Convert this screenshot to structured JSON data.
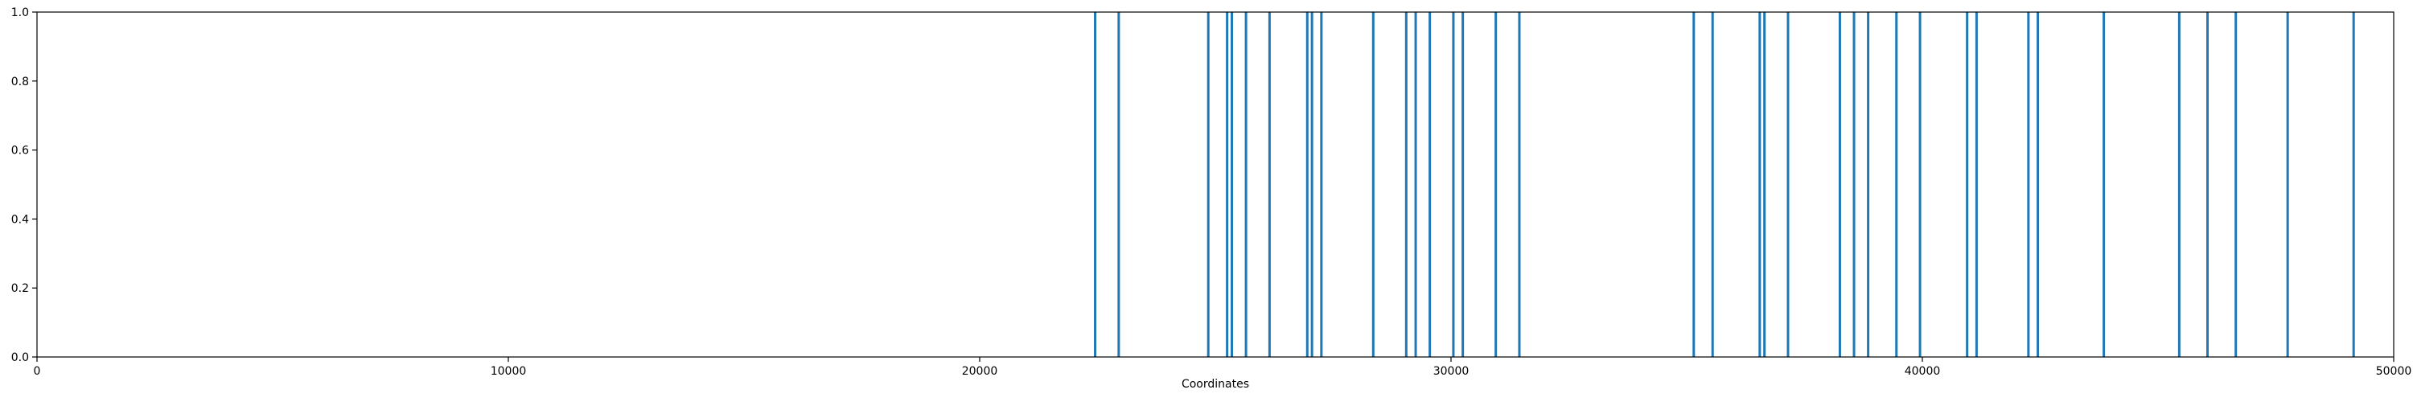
{
  "chart_data": {
    "type": "bar",
    "title": "",
    "xlabel": "Coordinates",
    "ylabel": "",
    "xlim": [
      0,
      50000
    ],
    "ylim": [
      0.0,
      1.0
    ],
    "x_ticks": [
      0,
      10000,
      20000,
      30000,
      40000,
      50000
    ],
    "x_tick_labels": [
      "0",
      "10000",
      "20000",
      "30000",
      "40000",
      "50000"
    ],
    "y_ticks": [
      0.0,
      0.2,
      0.4,
      0.6,
      0.8,
      1.0
    ],
    "y_tick_labels": [
      "0.0",
      "0.2",
      "0.4",
      "0.6",
      "0.8",
      "1.0"
    ],
    "grid": false,
    "color": "#1f77b4",
    "positions": [
      22450,
      22950,
      24850,
      25250,
      25350,
      25650,
      26150,
      26950,
      27050,
      27250,
      28350,
      29050,
      29250,
      29550,
      30050,
      30250,
      30950,
      31450,
      35150,
      35550,
      36550,
      36650,
      37150,
      38250,
      38550,
      38850,
      39450,
      39950,
      40950,
      41150,
      42250,
      42450,
      43850,
      45450,
      46050,
      46650,
      47750,
      49150
    ],
    "values": [
      1,
      1,
      1,
      1,
      1,
      1,
      1,
      1,
      1,
      1,
      1,
      1,
      1,
      1,
      1,
      1,
      1,
      1,
      1,
      1,
      1,
      1,
      1,
      1,
      1,
      1,
      1,
      1,
      1,
      1,
      1,
      1,
      1,
      1,
      1,
      1,
      1,
      1
    ]
  }
}
